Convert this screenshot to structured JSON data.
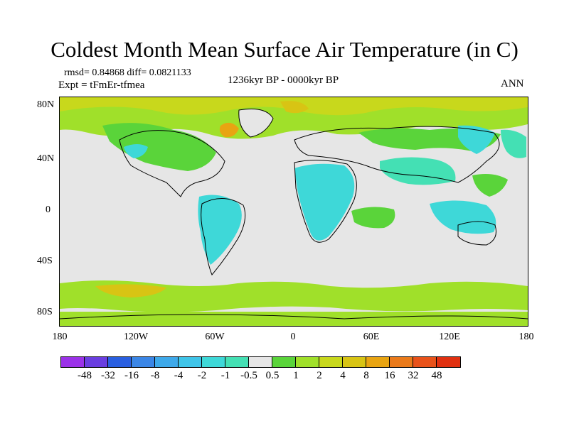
{
  "title": "Coldest Month Mean Surface Air Temperature (in C)",
  "stats_text": "rmsd= 0.84868 diff= 0.0821133",
  "expt_text": "Expt = tFmEr-tfmea",
  "period_text": "1236kyr BP - 0000kyr BP",
  "season_text": "ANN",
  "latitude_labels": [
    "80N",
    "40N",
    "0",
    "40S",
    "80S"
  ],
  "longitude_labels": [
    "180",
    "120W",
    "60W",
    "0",
    "60E",
    "120E",
    "180"
  ],
  "colorbar": {
    "colors": [
      "#9b32e8",
      "#6a3ee0",
      "#2a5fe0",
      "#3b86e6",
      "#3ea9ea",
      "#3fc4e8",
      "#3ed8d8",
      "#44e0b4",
      "#e6e6e6",
      "#5ad43a",
      "#a0e02a",
      "#c8d81c",
      "#d8c414",
      "#e8a412",
      "#ea7a1a",
      "#e8521a",
      "#e03010"
    ],
    "labels": [
      "-48",
      "-32",
      "-16",
      "-8",
      "-4",
      "-2",
      "-1",
      "-0.5",
      "0.5",
      "1",
      "2",
      "4",
      "8",
      "16",
      "32",
      "48"
    ]
  },
  "field_colors": {
    "neutral": "#e6e6e6",
    "slight_cool": "#44e0b4",
    "cool": "#3ed8d8",
    "slight_warm": "#5ad43a",
    "warm": "#a0e02a",
    "warmer": "#c8d81c",
    "warmest": "#d8c414",
    "hot": "#e8a412"
  }
}
